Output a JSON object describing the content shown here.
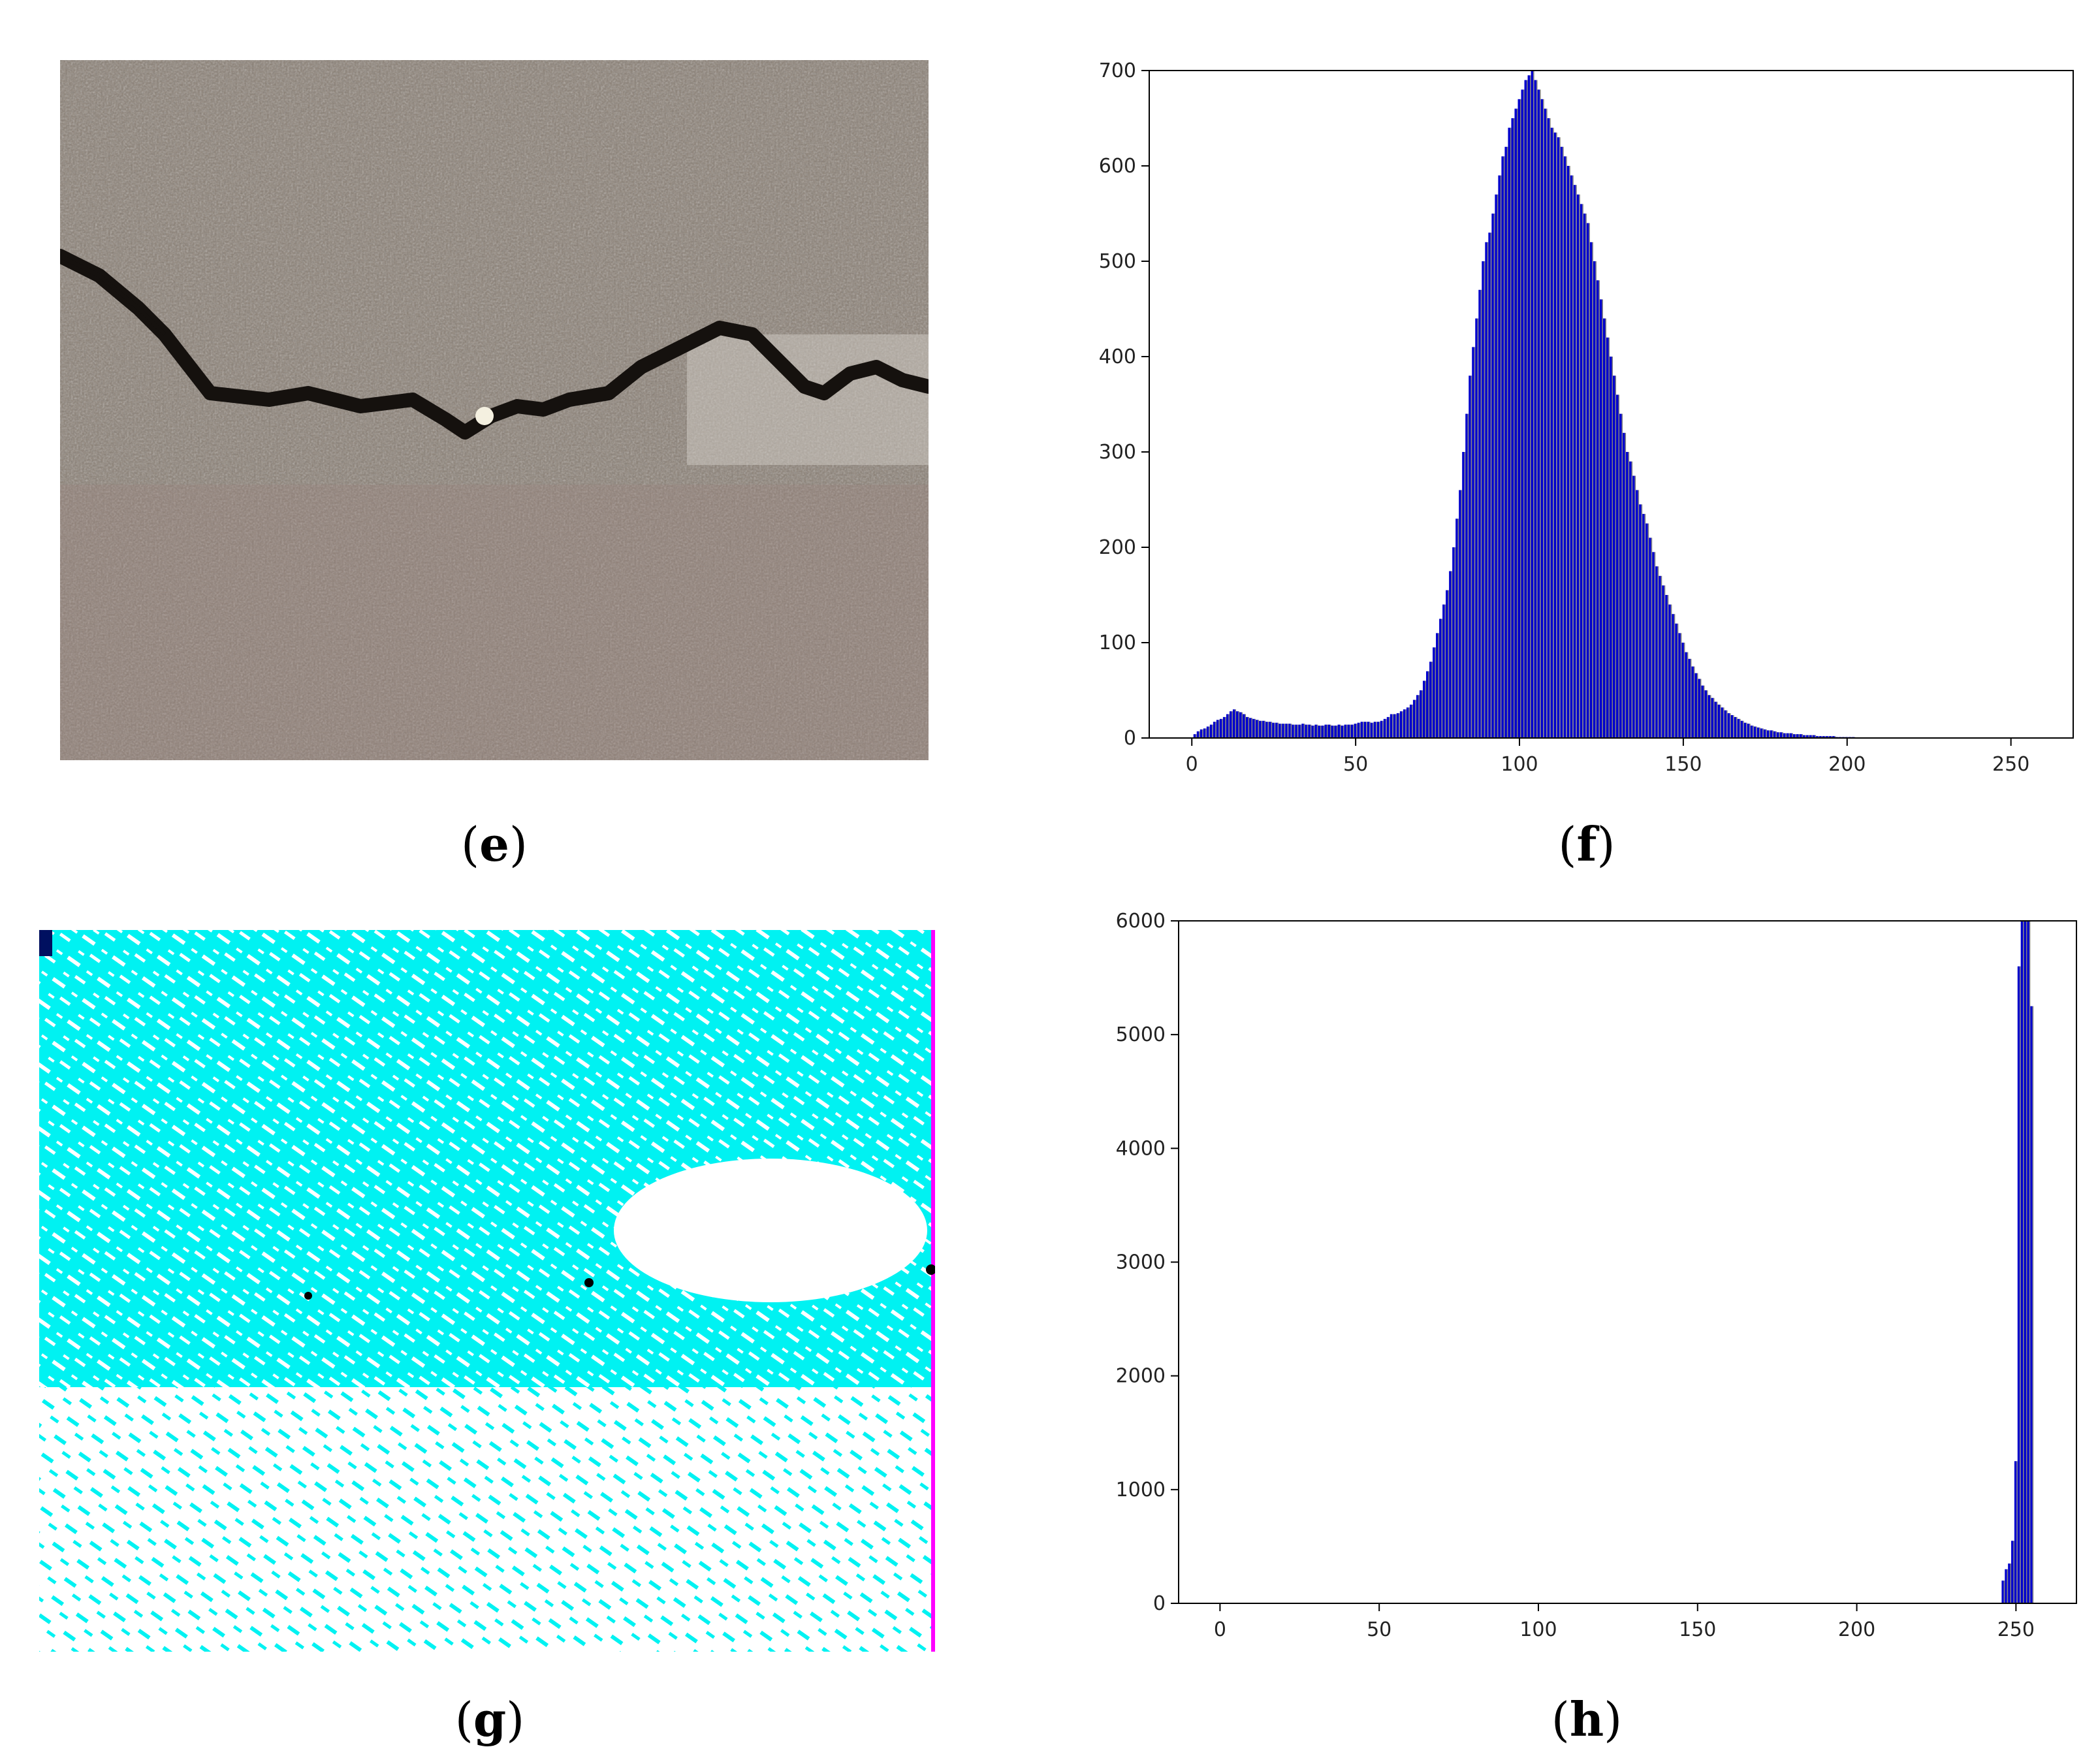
{
  "captions": {
    "e": "e",
    "f": "f",
    "g": "g",
    "h": "h"
  },
  "panel_e": {
    "type": "photo",
    "subject": "pavement crack photograph"
  },
  "panel_g": {
    "type": "binarized image",
    "colors": {
      "fill": "#00f2f2",
      "background": "#ffffff",
      "edge": "#ff00ff"
    }
  },
  "colors": {
    "bar": "#0000cc",
    "bar_shadow": "#7f7f7f",
    "axis": "#000000"
  },
  "chart_data": [
    {
      "panel": "f",
      "type": "bar",
      "title": "",
      "xlabel": "",
      "ylabel": "",
      "xlim": [
        -13,
        269
      ],
      "ylim": [
        0,
        700
      ],
      "xticks": [
        0,
        50,
        100,
        150,
        200,
        250
      ],
      "yticks": [
        0,
        100,
        200,
        300,
        400,
        500,
        600,
        700
      ],
      "grid": false,
      "series": [
        {
          "x_start": 1,
          "values": [
            4,
            7,
            9,
            10,
            12,
            14,
            17,
            19,
            20,
            22,
            25,
            28,
            30,
            28,
            27,
            25,
            22,
            21,
            20,
            19,
            18,
            18,
            17,
            17,
            16,
            16,
            15,
            15,
            15,
            15,
            14,
            14,
            14,
            15,
            14,
            14,
            13,
            14,
            13,
            13,
            14,
            14,
            13,
            13,
            14,
            13,
            14,
            14,
            14,
            15,
            16,
            17,
            17,
            17,
            16,
            17,
            17,
            18,
            20,
            22,
            25,
            25,
            26,
            28,
            30,
            32,
            35,
            40,
            45,
            50,
            60,
            70,
            80,
            95,
            110,
            125,
            140,
            155,
            175,
            200,
            230,
            260,
            300,
            340,
            380,
            410,
            440,
            470,
            500,
            520,
            530,
            550,
            570,
            590,
            610,
            620,
            640,
            650,
            660,
            670,
            680,
            690,
            695,
            700,
            690,
            680,
            670,
            660,
            650,
            640,
            635,
            630,
            620,
            610,
            600,
            590,
            580,
            570,
            560,
            550,
            540,
            520,
            500,
            480,
            460,
            440,
            420,
            400,
            380,
            360,
            340,
            320,
            300,
            290,
            275,
            260,
            245,
            235,
            225,
            210,
            195,
            180,
            170,
            160,
            150,
            140,
            130,
            120,
            110,
            100,
            90,
            83,
            75,
            68,
            62,
            55,
            50,
            45,
            42,
            38,
            35,
            32,
            29,
            26,
            24,
            22,
            20,
            18,
            16,
            15,
            13,
            12,
            11,
            10,
            9,
            8,
            8,
            7,
            6,
            6,
            5,
            5,
            5,
            4,
            4,
            4,
            3,
            3,
            3,
            3,
            2,
            2,
            2,
            2,
            2,
            2,
            1,
            1,
            1,
            1,
            1,
            1
          ]
        }
      ]
    },
    {
      "panel": "h",
      "type": "bar",
      "title": "",
      "xlabel": "",
      "ylabel": "",
      "xlim": [
        -13,
        269
      ],
      "ylim": [
        0,
        6000
      ],
      "xticks": [
        0,
        50,
        100,
        150,
        200,
        250
      ],
      "yticks": [
        0,
        1000,
        2000,
        3000,
        4000,
        5000,
        6000
      ],
      "grid": false,
      "series": [
        {
          "x": [
            246,
            247,
            248,
            249,
            250,
            251,
            252,
            253,
            254,
            255
          ],
          "values": [
            200,
            300,
            350,
            550,
            1250,
            5600,
            6000,
            6000,
            6000,
            5250
          ]
        }
      ]
    }
  ]
}
